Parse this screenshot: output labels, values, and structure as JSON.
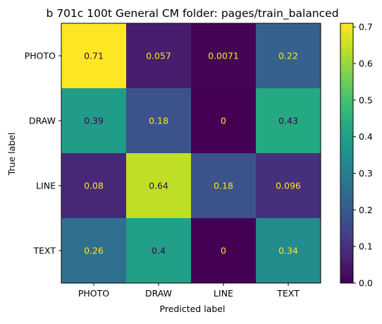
{
  "chart_data": {
    "type": "heatmap",
    "title": "b 701c 100t  General CM folder: pages/train_balanced",
    "xlabel": "Predicted label",
    "ylabel": "True label",
    "x_categories": [
      "PHOTO",
      "DRAW",
      "LINE",
      "TEXT"
    ],
    "y_categories": [
      "PHOTO",
      "DRAW",
      "LINE",
      "TEXT"
    ],
    "values": [
      [
        0.71,
        0.057,
        0.0071,
        0.22
      ],
      [
        0.39,
        0.18,
        0,
        0.43
      ],
      [
        0.08,
        0.64,
        0.18,
        0.096
      ],
      [
        0.26,
        0.4,
        0,
        0.34
      ]
    ],
    "cell_labels": [
      [
        "0.71",
        "0.057",
        "0.0071",
        "0.22"
      ],
      [
        "0.39",
        "0.18",
        "0",
        "0.43"
      ],
      [
        "0.08",
        "0.64",
        "0.18",
        "0.096"
      ],
      [
        "0.26",
        "0.4",
        "0",
        "0.34"
      ]
    ],
    "colormap": "viridis",
    "colorbar": {
      "range": [
        0.0,
        0.71
      ],
      "ticks": [
        0.0,
        0.1,
        0.2,
        0.3,
        0.4,
        0.5,
        0.6,
        0.7
      ],
      "tick_labels": [
        "0.0",
        "0.1",
        "0.2",
        "0.3",
        "0.4",
        "0.5",
        "0.6",
        "0.7"
      ]
    },
    "grid": false
  }
}
